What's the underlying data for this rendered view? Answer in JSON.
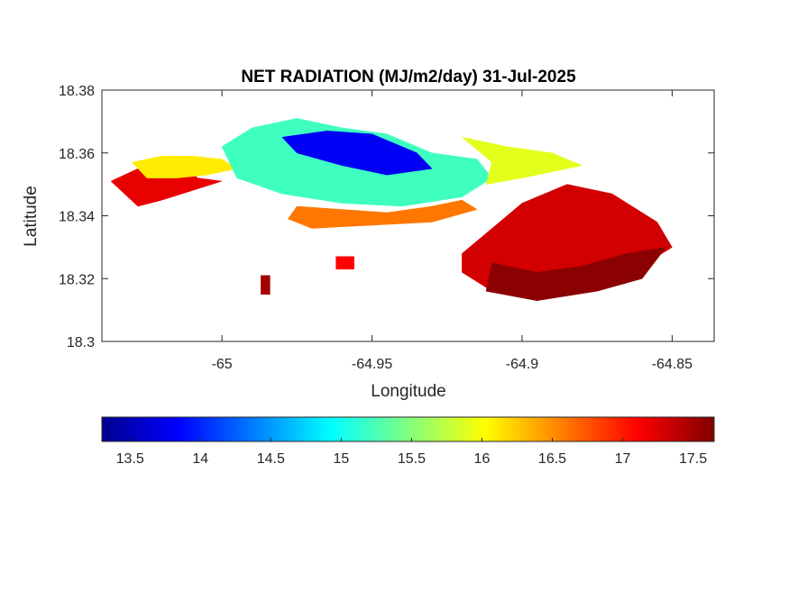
{
  "chart_data": {
    "type": "heatmap",
    "title": "NET RADIATION (MJ/m2/day) 31-Jul-2025",
    "xlabel": "Longitude",
    "ylabel": "Latitude",
    "xlim": [
      -65.04,
      -64.836
    ],
    "ylim": [
      18.3,
      18.38
    ],
    "x_ticks": [
      -65,
      -64.95,
      -64.9,
      -64.85
    ],
    "x_tick_labels": [
      "-65",
      "-64.95",
      "-64.9",
      "-64.85"
    ],
    "y_ticks": [
      18.3,
      18.32,
      18.34,
      18.36,
      18.38
    ],
    "y_tick_labels": [
      "18.3",
      "18.32",
      "18.34",
      "18.36",
      "18.38"
    ],
    "grid": false,
    "colormap": "jet",
    "colorbar": {
      "orientation": "horizontal",
      "placement": "bottom",
      "clim": [
        13.3,
        17.65
      ],
      "ticks": [
        13.5,
        14,
        14.5,
        15,
        15.5,
        16,
        16.5,
        17,
        17.5
      ],
      "tick_labels": [
        "13.5",
        "14",
        "14.5",
        "15",
        "15.5",
        "16",
        "16.5",
        "17",
        "17.5"
      ]
    },
    "regions": [
      {
        "value": 17.2,
        "polygon": [
          [
            -65.037,
            18.351
          ],
          [
            -65.028,
            18.355
          ],
          [
            -65.015,
            18.357
          ],
          [
            -65.008,
            18.352
          ],
          [
            -65.0,
            18.351
          ],
          [
            -65.01,
            18.348
          ],
          [
            -65.02,
            18.345
          ],
          [
            -65.028,
            18.343
          ]
        ]
      },
      {
        "value": 16.1,
        "polygon": [
          [
            -65.03,
            18.357
          ],
          [
            -65.02,
            18.359
          ],
          [
            -65.01,
            18.359
          ],
          [
            -65.0,
            18.358
          ],
          [
            -64.995,
            18.355
          ],
          [
            -65.005,
            18.353
          ],
          [
            -65.015,
            18.352
          ],
          [
            -65.025,
            18.352
          ]
        ]
      },
      {
        "value": 15.2,
        "polygon": [
          [
            -65.0,
            18.362
          ],
          [
            -64.99,
            18.368
          ],
          [
            -64.975,
            18.371
          ],
          [
            -64.96,
            18.368
          ],
          [
            -64.945,
            18.366
          ],
          [
            -64.93,
            18.36
          ],
          [
            -64.915,
            18.358
          ],
          [
            -64.91,
            18.352
          ],
          [
            -64.92,
            18.346
          ],
          [
            -64.94,
            18.343
          ],
          [
            -64.96,
            18.344
          ],
          [
            -64.98,
            18.347
          ],
          [
            -64.995,
            18.352
          ]
        ]
      },
      {
        "value": 13.8,
        "polygon": [
          [
            -64.98,
            18.365
          ],
          [
            -64.965,
            18.367
          ],
          [
            -64.95,
            18.366
          ],
          [
            -64.935,
            18.36
          ],
          [
            -64.93,
            18.355
          ],
          [
            -64.945,
            18.353
          ],
          [
            -64.96,
            18.356
          ],
          [
            -64.975,
            18.36
          ]
        ]
      },
      {
        "value": 16.6,
        "polygon": [
          [
            -64.975,
            18.343
          ],
          [
            -64.96,
            18.342
          ],
          [
            -64.945,
            18.341
          ],
          [
            -64.93,
            18.343
          ],
          [
            -64.92,
            18.345
          ],
          [
            -64.915,
            18.342
          ],
          [
            -64.93,
            18.338
          ],
          [
            -64.95,
            18.337
          ],
          [
            -64.97,
            18.336
          ],
          [
            -64.978,
            18.339
          ]
        ]
      },
      {
        "value": 15.9,
        "polygon": [
          [
            -64.92,
            18.365
          ],
          [
            -64.905,
            18.362
          ],
          [
            -64.89,
            18.36
          ],
          [
            -64.88,
            18.356
          ],
          [
            -64.9,
            18.352
          ],
          [
            -64.912,
            18.35
          ],
          [
            -64.91,
            18.357
          ]
        ]
      },
      {
        "value": 17.3,
        "polygon": [
          [
            -64.915,
            18.332
          ],
          [
            -64.9,
            18.344
          ],
          [
            -64.885,
            18.35
          ],
          [
            -64.87,
            18.347
          ],
          [
            -64.855,
            18.338
          ],
          [
            -64.85,
            18.33
          ],
          [
            -64.86,
            18.324
          ],
          [
            -64.875,
            18.318
          ],
          [
            -64.895,
            18.315
          ],
          [
            -64.91,
            18.316
          ],
          [
            -64.92,
            18.322
          ],
          [
            -64.92,
            18.328
          ]
        ]
      },
      {
        "value": 17.6,
        "polygon": [
          [
            -64.91,
            18.325
          ],
          [
            -64.895,
            18.322
          ],
          [
            -64.88,
            18.324
          ],
          [
            -64.865,
            18.328
          ],
          [
            -64.852,
            18.33
          ],
          [
            -64.86,
            18.32
          ],
          [
            -64.875,
            18.316
          ],
          [
            -64.895,
            18.313
          ],
          [
            -64.912,
            18.316
          ]
        ]
      },
      {
        "value": 17.1,
        "polygon": [
          [
            -64.962,
            18.327
          ],
          [
            -64.956,
            18.327
          ],
          [
            -64.956,
            18.323
          ],
          [
            -64.962,
            18.323
          ]
        ]
      },
      {
        "value": 17.5,
        "polygon": [
          [
            -64.987,
            18.321
          ],
          [
            -64.984,
            18.321
          ],
          [
            -64.984,
            18.315
          ],
          [
            -64.987,
            18.315
          ]
        ]
      }
    ]
  }
}
